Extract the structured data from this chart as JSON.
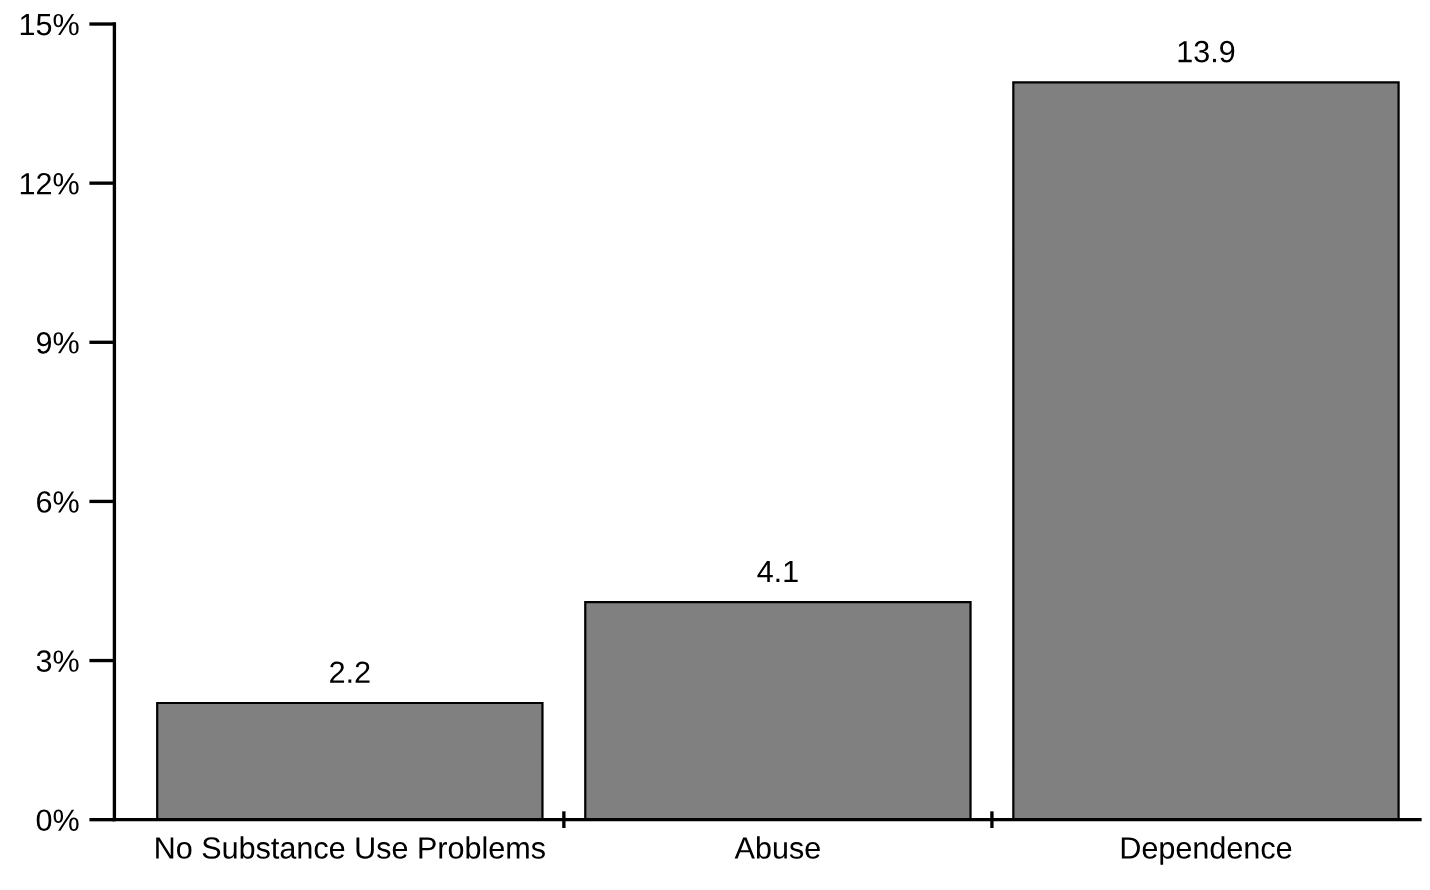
{
  "chart_data": {
    "type": "bar",
    "categories": [
      "No Substance Use Problems",
      "Abuse",
      "Dependence"
    ],
    "values": [
      2.2,
      4.1,
      13.9
    ],
    "color": "#808080",
    "ylim": [
      0,
      15
    ],
    "yticks": [
      {
        "value": 0,
        "label": "0%"
      },
      {
        "value": 3,
        "label": "3%"
      },
      {
        "value": 6,
        "label": "6%"
      },
      {
        "value": 9,
        "label": "9%"
      },
      {
        "value": 12,
        "label": "12%"
      },
      {
        "value": 15,
        "label": "15%"
      }
    ],
    "data_labels": true,
    "grid": false,
    "legend": false
  }
}
